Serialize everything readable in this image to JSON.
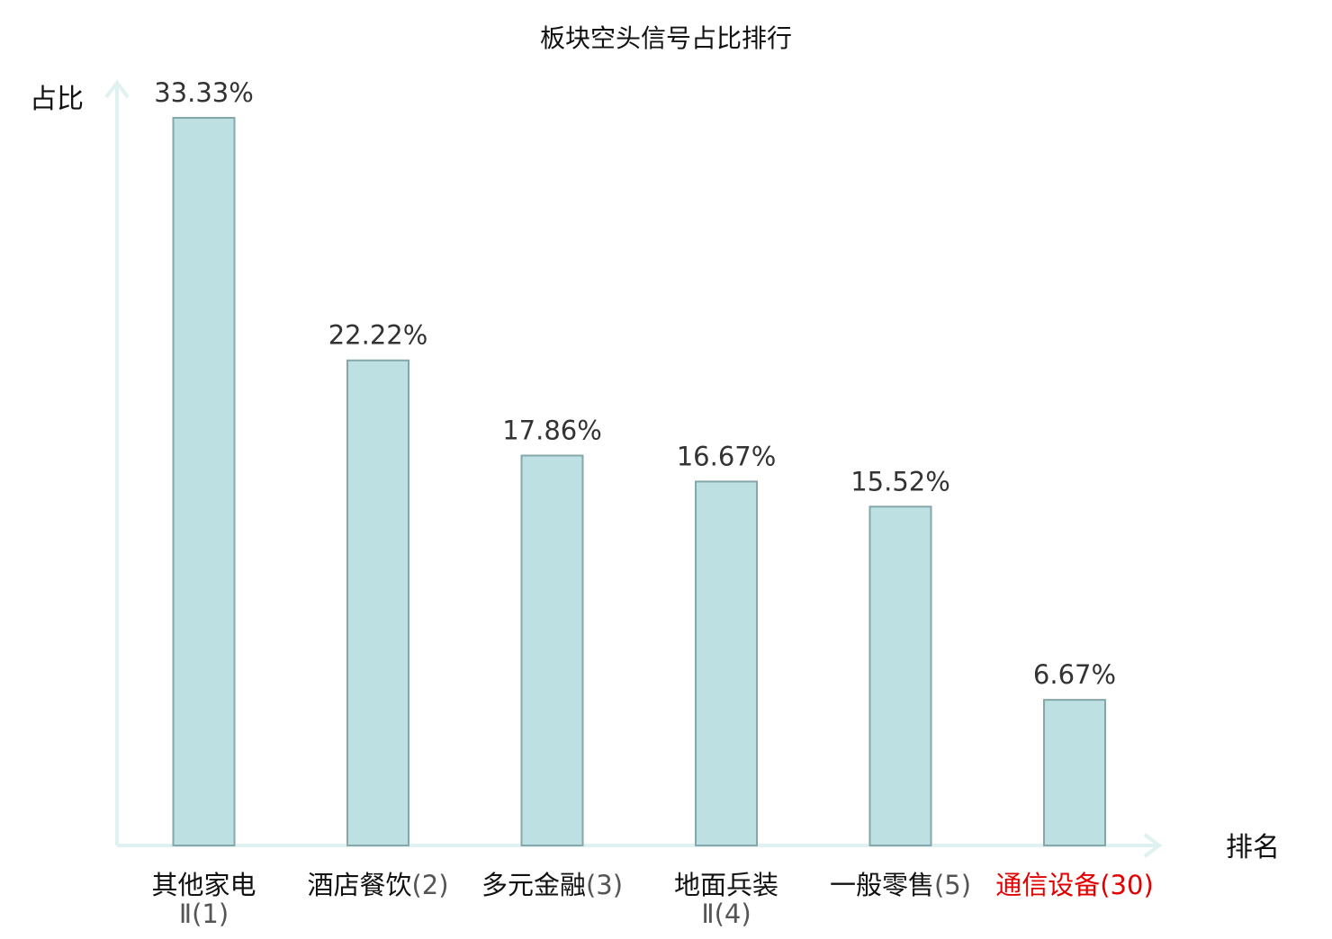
{
  "chart_data": {
    "type": "bar",
    "title": "板块空头信号占比排行",
    "ylabel": "占比",
    "xlabel": "排名",
    "ylim": [
      0,
      35
    ],
    "grid": false,
    "categories": [
      {
        "name": "其他家电Ⅱ",
        "rank": "(1)",
        "highlight": false
      },
      {
        "name": "酒店餐饮",
        "rank": "(2)",
        "highlight": false
      },
      {
        "name": "多元金融",
        "rank": "(3)",
        "highlight": false
      },
      {
        "name": "地面兵装Ⅱ",
        "rank": "(4)",
        "highlight": false
      },
      {
        "name": "一般零售",
        "rank": "(5)",
        "highlight": false
      },
      {
        "name": "通信设备",
        "rank": "(30)",
        "highlight": true
      }
    ],
    "values": [
      33.33,
      22.22,
      17.86,
      16.67,
      15.52,
      6.67
    ],
    "value_labels": [
      "33.33%",
      "22.22%",
      "17.86%",
      "16.67%",
      "15.52%",
      "6.67%"
    ],
    "colors": {
      "bar_fill": "#bde0e2",
      "bar_stroke": "#86a7aa",
      "axis": "#dff2ef",
      "highlight": "#e00000"
    }
  }
}
